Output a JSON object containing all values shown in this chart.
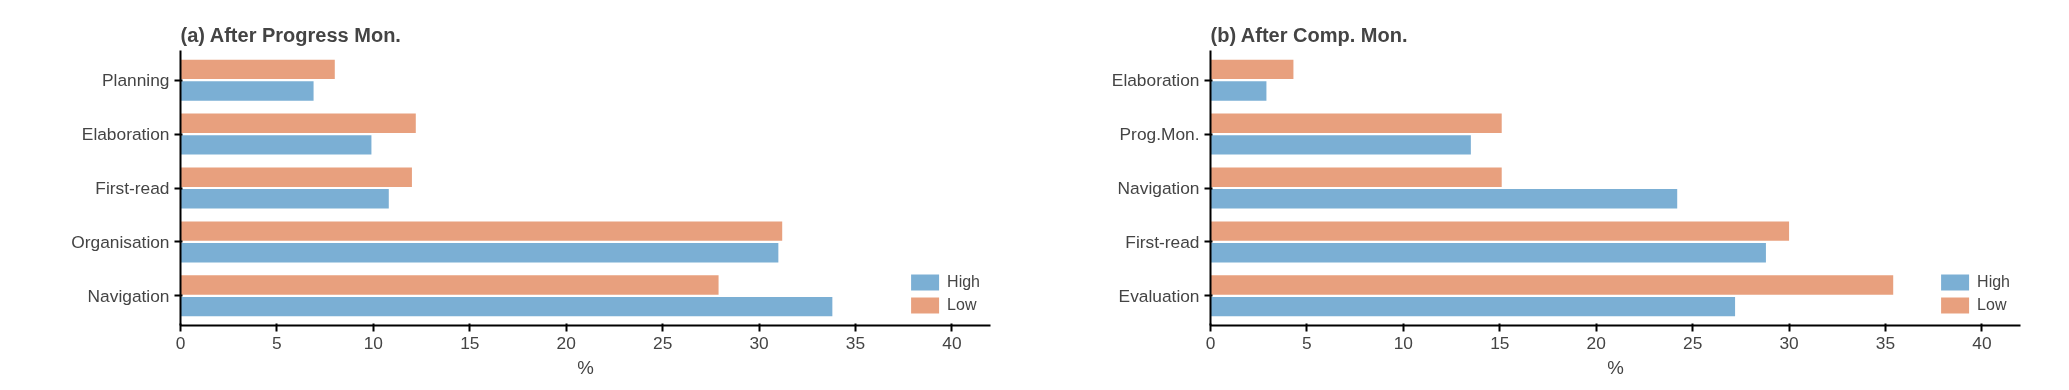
{
  "chart_data": [
    {
      "type": "bar",
      "orientation": "horizontal",
      "title": "(a) After Progress Mon.",
      "xlabel": "%",
      "categories": [
        "Planning",
        "Elaboration",
        "First-read",
        "Organisation",
        "Navigation"
      ],
      "series": [
        {
          "name": "High",
          "color": "#7bafd4",
          "values": [
            6.9,
            9.9,
            10.8,
            31.0,
            33.8
          ]
        },
        {
          "name": "Low",
          "color": "#e8a07e",
          "values": [
            8.0,
            12.2,
            12.0,
            31.2,
            27.9
          ]
        }
      ],
      "xlim": [
        0,
        42
      ],
      "xticks": [
        0,
        5,
        10,
        15,
        20,
        25,
        30,
        35,
        40
      ],
      "legend": "bottom right",
      "grid": false
    },
    {
      "type": "bar",
      "orientation": "horizontal",
      "title": "(b) After Comp. Mon.",
      "xlabel": "%",
      "categories": [
        "Elaboration",
        "Prog.Mon.",
        "Navigation",
        "First-read",
        "Evaluation"
      ],
      "series": [
        {
          "name": "High",
          "color": "#7bafd4",
          "values": [
            2.9,
            13.5,
            24.2,
            28.8,
            27.2
          ]
        },
        {
          "name": "Low",
          "color": "#e8a07e",
          "values": [
            4.3,
            15.1,
            15.1,
            30.0,
            35.4
          ]
        }
      ],
      "xlim": [
        0,
        42
      ],
      "xticks": [
        0,
        5,
        10,
        15,
        20,
        25,
        30,
        35,
        40
      ],
      "legend": "bottom right",
      "grid": false
    }
  ]
}
